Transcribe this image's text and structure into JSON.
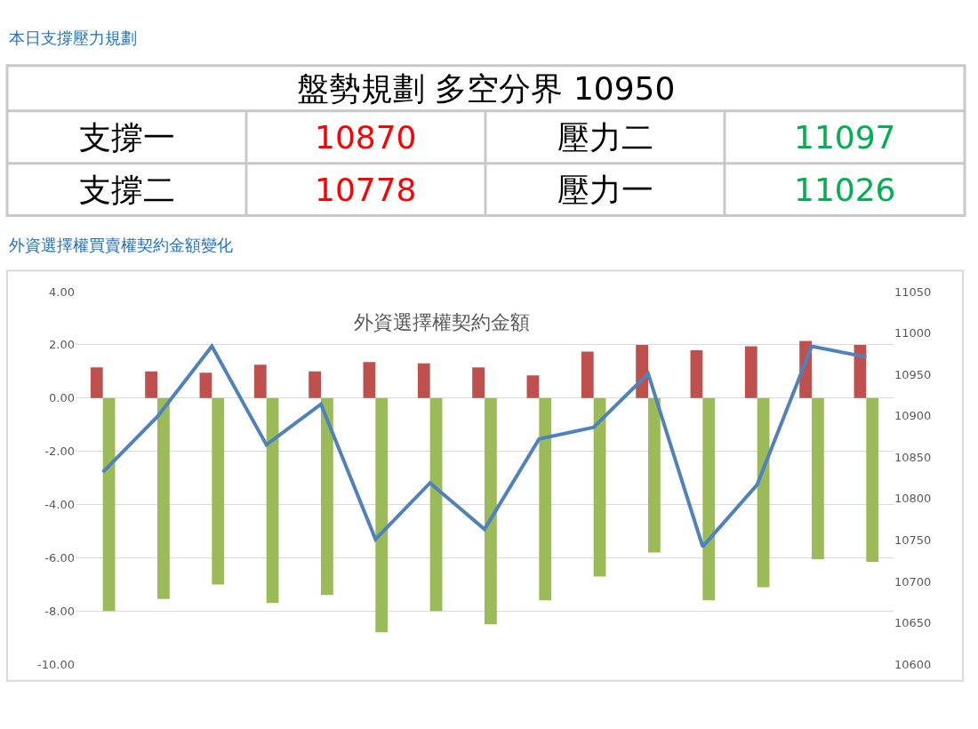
{
  "chart_data": [
    {
      "type": "other",
      "title": "本日支撐壓力規劃",
      "annotations": [
        "盤勢規劃 多空分界 10950",
        "支撐一",
        "10870",
        "壓力二",
        "11097",
        "支撐二",
        "10778",
        "壓力一",
        "11026"
      ],
      "colors": [
        "#000000",
        "#000000",
        "#ff0000",
        "#000000",
        "#00b050",
        "#000000",
        "#ff0000",
        "#000000",
        "#00b050"
      ]
    },
    {
      "type": "bar",
      "title": "外資選擇權買賣權契約金額變化",
      "subtitle": "外資選擇權契約金額",
      "categories": [
        null,
        null,
        null,
        null,
        null,
        null,
        null,
        null,
        null,
        null,
        null,
        null,
        null,
        null,
        null
      ],
      "series": [
        {
          "type": "bar",
          "color": "#c0504d",
          "values": [
            1.15,
            1.0,
            0.95,
            1.25,
            1.0,
            1.35,
            1.3,
            1.15,
            0.85,
            1.75,
            2.0,
            1.8,
            1.95,
            2.15,
            2.0
          ]
        },
        {
          "type": "bar",
          "color": "#9bbb59",
          "values": [
            -8.0,
            -7.55,
            -7.0,
            -7.7,
            -7.4,
            -8.8,
            -8.0,
            -8.5,
            -7.6,
            -6.7,
            -5.8,
            -7.6,
            -7.1,
            -6.05,
            -6.15
          ]
        },
        {
          "type": "line",
          "axis": "y2",
          "color": "#4f81bd",
          "values": [
            10832,
            10899,
            10984,
            10865,
            10914,
            10751,
            10819,
            10763,
            10872,
            10886,
            10951,
            10742,
            10817,
            10984,
            10971
          ]
        }
      ],
      "ylim": [
        -10,
        4
      ],
      "yticks": [
        {
          "value": -10,
          "label": "-10.00"
        },
        {
          "value": -8,
          "label": "-8.00"
        },
        {
          "value": -6,
          "label": "-6.00"
        },
        {
          "value": -4,
          "label": "-4.00"
        },
        {
          "value": -2,
          "label": "-2.00"
        },
        {
          "value": 0,
          "label": "0.00"
        },
        {
          "value": 2,
          "label": "2.00"
        },
        {
          "value": 4,
          "label": "4.00"
        }
      ],
      "y2lim": [
        10600,
        11050
      ],
      "y2ticks": [
        10600,
        10650,
        10700,
        10750,
        10800,
        10850,
        10900,
        10950,
        11000,
        11050
      ],
      "grid": "y",
      "marker": "none",
      "line_style": "solid"
    }
  ]
}
